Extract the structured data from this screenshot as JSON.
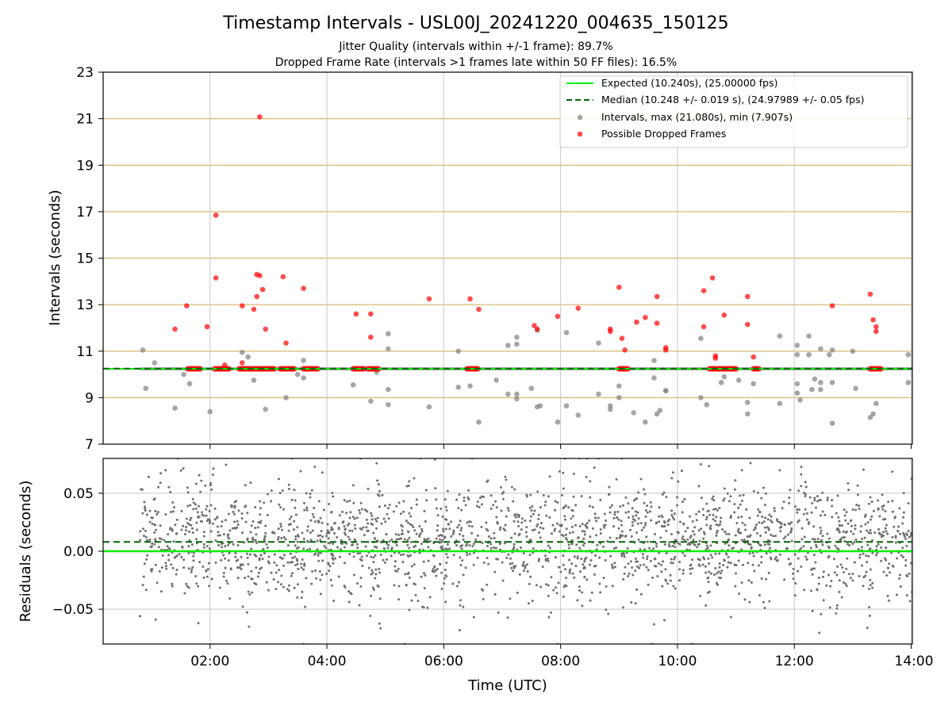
{
  "chart_data": [
    {
      "panel": "top",
      "type": "scatter",
      "title": "Timestamp Intervals - USL00J_20241220_004635_150125",
      "subtitle_lines": [
        "Jitter Quality (intervals within +/-1 frame): 89.7%",
        "Dropped Frame Rate (intervals >1 frames late within 50 FF files): 16.5%"
      ],
      "xlabel": "",
      "ylabel": "Intervals (seconds)",
      "xlim_hours": [
        0.17,
        14.02
      ],
      "ylim": [
        7,
        23
      ],
      "ytick_values": [
        7,
        9,
        11,
        13,
        15,
        17,
        19,
        21,
        23
      ],
      "ytick_labels": [
        "7",
        "9",
        "11",
        "13",
        "15",
        "17",
        "19",
        "21",
        "23"
      ],
      "xtick_values_hours": [
        2,
        4,
        6,
        8,
        10,
        12,
        14
      ],
      "grid": "x gray, y tan",
      "legend_position": "top-right",
      "legend": [
        "Expected (10.240s), (25.00000 fps)",
        "Median (10.248 +/- 0.019 s), (24.97989 +/- 0.05 fps)",
        "Intervals, max (21.080s), min (7.907s)",
        "Possible Dropped Frames"
      ],
      "expected_interval": 10.24,
      "median_interval": 10.248,
      "colors": {
        "expected": "#00ee00",
        "median": "#006400",
        "intervals": "#808080",
        "dropped": "#ff0000"
      },
      "series": [
        {
          "name": "Intervals, max (21.080s), min (7.907s)",
          "points": [
            [
              0.85,
              11.05
            ],
            [
              0.9,
              9.4
            ],
            [
              1.05,
              10.5
            ],
            [
              1.4,
              8.55
            ],
            [
              1.55,
              10.0
            ],
            [
              1.65,
              9.6
            ],
            [
              2.0,
              8.4
            ],
            [
              2.55,
              10.95
            ],
            [
              2.65,
              10.75
            ],
            [
              2.75,
              9.75
            ],
            [
              2.95,
              8.5
            ],
            [
              3.3,
              9.0
            ],
            [
              3.5,
              10.0
            ],
            [
              3.6,
              10.6
            ],
            [
              3.6,
              9.85
            ],
            [
              4.45,
              9.55
            ],
            [
              4.75,
              8.85
            ],
            [
              4.85,
              10.1
            ],
            [
              5.05,
              11.75
            ],
            [
              5.05,
              11.1
            ],
            [
              5.05,
              9.35
            ],
            [
              5.05,
              8.7
            ],
            [
              5.75,
              8.6
            ],
            [
              6.25,
              11.0
            ],
            [
              6.25,
              9.45
            ],
            [
              6.45,
              9.5
            ],
            [
              6.6,
              7.95
            ],
            [
              6.9,
              9.75
            ],
            [
              7.1,
              11.25
            ],
            [
              7.1,
              9.15
            ],
            [
              7.25,
              11.6
            ],
            [
              7.25,
              11.3
            ],
            [
              7.25,
              9.15
            ],
            [
              7.25,
              8.95
            ],
            [
              7.5,
              9.4
            ],
            [
              7.6,
              11.9
            ],
            [
              7.6,
              8.6
            ],
            [
              7.65,
              8.65
            ],
            [
              7.95,
              7.95
            ],
            [
              8.1,
              11.8
            ],
            [
              8.1,
              8.65
            ],
            [
              8.3,
              8.25
            ],
            [
              8.65,
              11.35
            ],
            [
              8.65,
              9.15
            ],
            [
              8.85,
              8.65
            ],
            [
              8.85,
              8.5
            ],
            [
              9.0,
              9.5
            ],
            [
              9.0,
              9.0
            ],
            [
              9.25,
              8.35
            ],
            [
              9.45,
              7.95
            ],
            [
              9.6,
              10.6
            ],
            [
              9.6,
              9.85
            ],
            [
              9.65,
              8.3
            ],
            [
              9.7,
              8.45
            ],
            [
              9.8,
              9.3
            ],
            [
              9.8,
              9.3
            ],
            [
              10.4,
              11.55
            ],
            [
              10.4,
              9.0
            ],
            [
              10.5,
              8.7
            ],
            [
              10.75,
              9.65
            ],
            [
              10.8,
              9.9
            ],
            [
              11.05,
              9.75
            ],
            [
              11.2,
              8.3
            ],
            [
              11.2,
              8.8
            ],
            [
              11.3,
              9.6
            ],
            [
              11.75,
              11.65
            ],
            [
              11.75,
              8.75
            ],
            [
              12.05,
              11.25
            ],
            [
              12.05,
              10.85
            ],
            [
              12.05,
              9.6
            ],
            [
              12.05,
              9.2
            ],
            [
              12.1,
              8.9
            ],
            [
              12.25,
              11.65
            ],
            [
              12.25,
              10.85
            ],
            [
              12.3,
              9.35
            ],
            [
              12.35,
              9.8
            ],
            [
              12.45,
              11.1
            ],
            [
              12.45,
              9.65
            ],
            [
              12.45,
              9.35
            ],
            [
              12.6,
              10.85
            ],
            [
              12.65,
              11.05
            ],
            [
              12.65,
              9.65
            ],
            [
              12.65,
              7.9
            ],
            [
              13.0,
              11.0
            ],
            [
              13.05,
              9.4
            ],
            [
              13.3,
              8.15
            ],
            [
              13.35,
              8.3
            ],
            [
              13.4,
              8.75
            ],
            [
              13.95,
              10.85
            ],
            [
              13.95,
              9.65
            ]
          ]
        },
        {
          "name": "Possible Dropped Frames",
          "points": [
            [
              1.4,
              11.95
            ],
            [
              1.6,
              12.95
            ],
            [
              1.95,
              12.05
            ],
            [
              2.1,
              16.85
            ],
            [
              2.1,
              14.15
            ],
            [
              2.25,
              10.4
            ],
            [
              2.55,
              12.95
            ],
            [
              2.55,
              10.5
            ],
            [
              2.75,
              12.8
            ],
            [
              2.8,
              14.3
            ],
            [
              2.8,
              13.35
            ],
            [
              2.85,
              21.08
            ],
            [
              2.85,
              14.25
            ],
            [
              2.9,
              13.65
            ],
            [
              2.95,
              11.95
            ],
            [
              3.25,
              14.2
            ],
            [
              3.3,
              11.35
            ],
            [
              3.6,
              13.7
            ],
            [
              4.5,
              12.6
            ],
            [
              4.75,
              12.6
            ],
            [
              4.75,
              11.6
            ],
            [
              5.75,
              13.25
            ],
            [
              6.45,
              13.25
            ],
            [
              6.6,
              12.8
            ],
            [
              7.55,
              12.1
            ],
            [
              7.6,
              11.95
            ],
            [
              7.95,
              12.5
            ],
            [
              8.3,
              12.85
            ],
            [
              8.85,
              11.95
            ],
            [
              8.85,
              11.85
            ],
            [
              9.0,
              13.75
            ],
            [
              9.05,
              11.55
            ],
            [
              9.1,
              11.05
            ],
            [
              9.3,
              12.25
            ],
            [
              9.45,
              12.45
            ],
            [
              9.65,
              12.2
            ],
            [
              9.65,
              13.35
            ],
            [
              9.8,
              11.15
            ],
            [
              9.8,
              11.05
            ],
            [
              10.45,
              13.6
            ],
            [
              10.45,
              12.05
            ],
            [
              10.6,
              14.15
            ],
            [
              10.65,
              10.8
            ],
            [
              10.65,
              10.7
            ],
            [
              10.8,
              12.55
            ],
            [
              11.2,
              13.35
            ],
            [
              11.2,
              12.15
            ],
            [
              11.3,
              10.75
            ],
            [
              12.65,
              12.95
            ],
            [
              13.3,
              13.45
            ],
            [
              13.35,
              12.35
            ],
            [
              13.4,
              12.05
            ],
            [
              13.4,
              11.85
            ]
          ]
        }
      ],
      "baseline_band": {
        "value": 10.24,
        "spread": 0.06
      },
      "dropped_runs": [
        [
          1.62,
          1.85
        ],
        [
          2.08,
          2.32
        ],
        [
          2.5,
          3.1
        ],
        [
          3.2,
          3.45
        ],
        [
          3.6,
          3.85
        ],
        [
          4.45,
          4.65
        ],
        [
          4.7,
          4.9
        ],
        [
          6.4,
          6.6
        ],
        [
          9.0,
          9.15
        ],
        [
          10.55,
          11.0
        ],
        [
          11.3,
          11.4
        ],
        [
          13.3,
          13.5
        ]
      ]
    },
    {
      "panel": "bottom",
      "type": "scatter",
      "xlabel": "Time (UTC)",
      "ylabel": "Residuals (seconds)",
      "xlim_hours": [
        0.17,
        14.02
      ],
      "ylim": [
        -0.08,
        0.08
      ],
      "ytick_values": [
        -0.05,
        0.0,
        0.05
      ],
      "ytick_labels": [
        "−0.05",
        "0.00",
        "0.05"
      ],
      "xtick_values_hours": [
        2,
        4,
        6,
        8,
        10,
        12,
        14
      ],
      "xtick_labels": [
        "02:00",
        "04:00",
        "06:00",
        "08:00",
        "10:00",
        "12:00",
        "14:00"
      ],
      "grid": true,
      "expected_residual": 0.0,
      "median_residual": 0.008,
      "residual_sample": {
        "x_range_hours": [
          0.8,
          14.02
        ],
        "count": 2200,
        "y_mean": 0.01,
        "y_std": 0.025,
        "y_clip": [
          -0.08,
          0.08
        ]
      },
      "residual_outliers": [
        [
          0.8,
          -0.056
        ],
        [
          0.95,
          0.064
        ],
        [
          1.15,
          0.059
        ],
        [
          2.05,
          0.066
        ],
        [
          3.55,
          0.069
        ],
        [
          3.6,
          -0.08
        ],
        [
          4.0,
          0.08
        ],
        [
          7.95,
          -0.08
        ],
        [
          9.6,
          -0.063
        ],
        [
          13.25,
          -0.066
        ],
        [
          11.25,
          0.076
        ],
        [
          10.4,
          0.075
        ],
        [
          9.05,
          0.08
        ]
      ]
    }
  ]
}
